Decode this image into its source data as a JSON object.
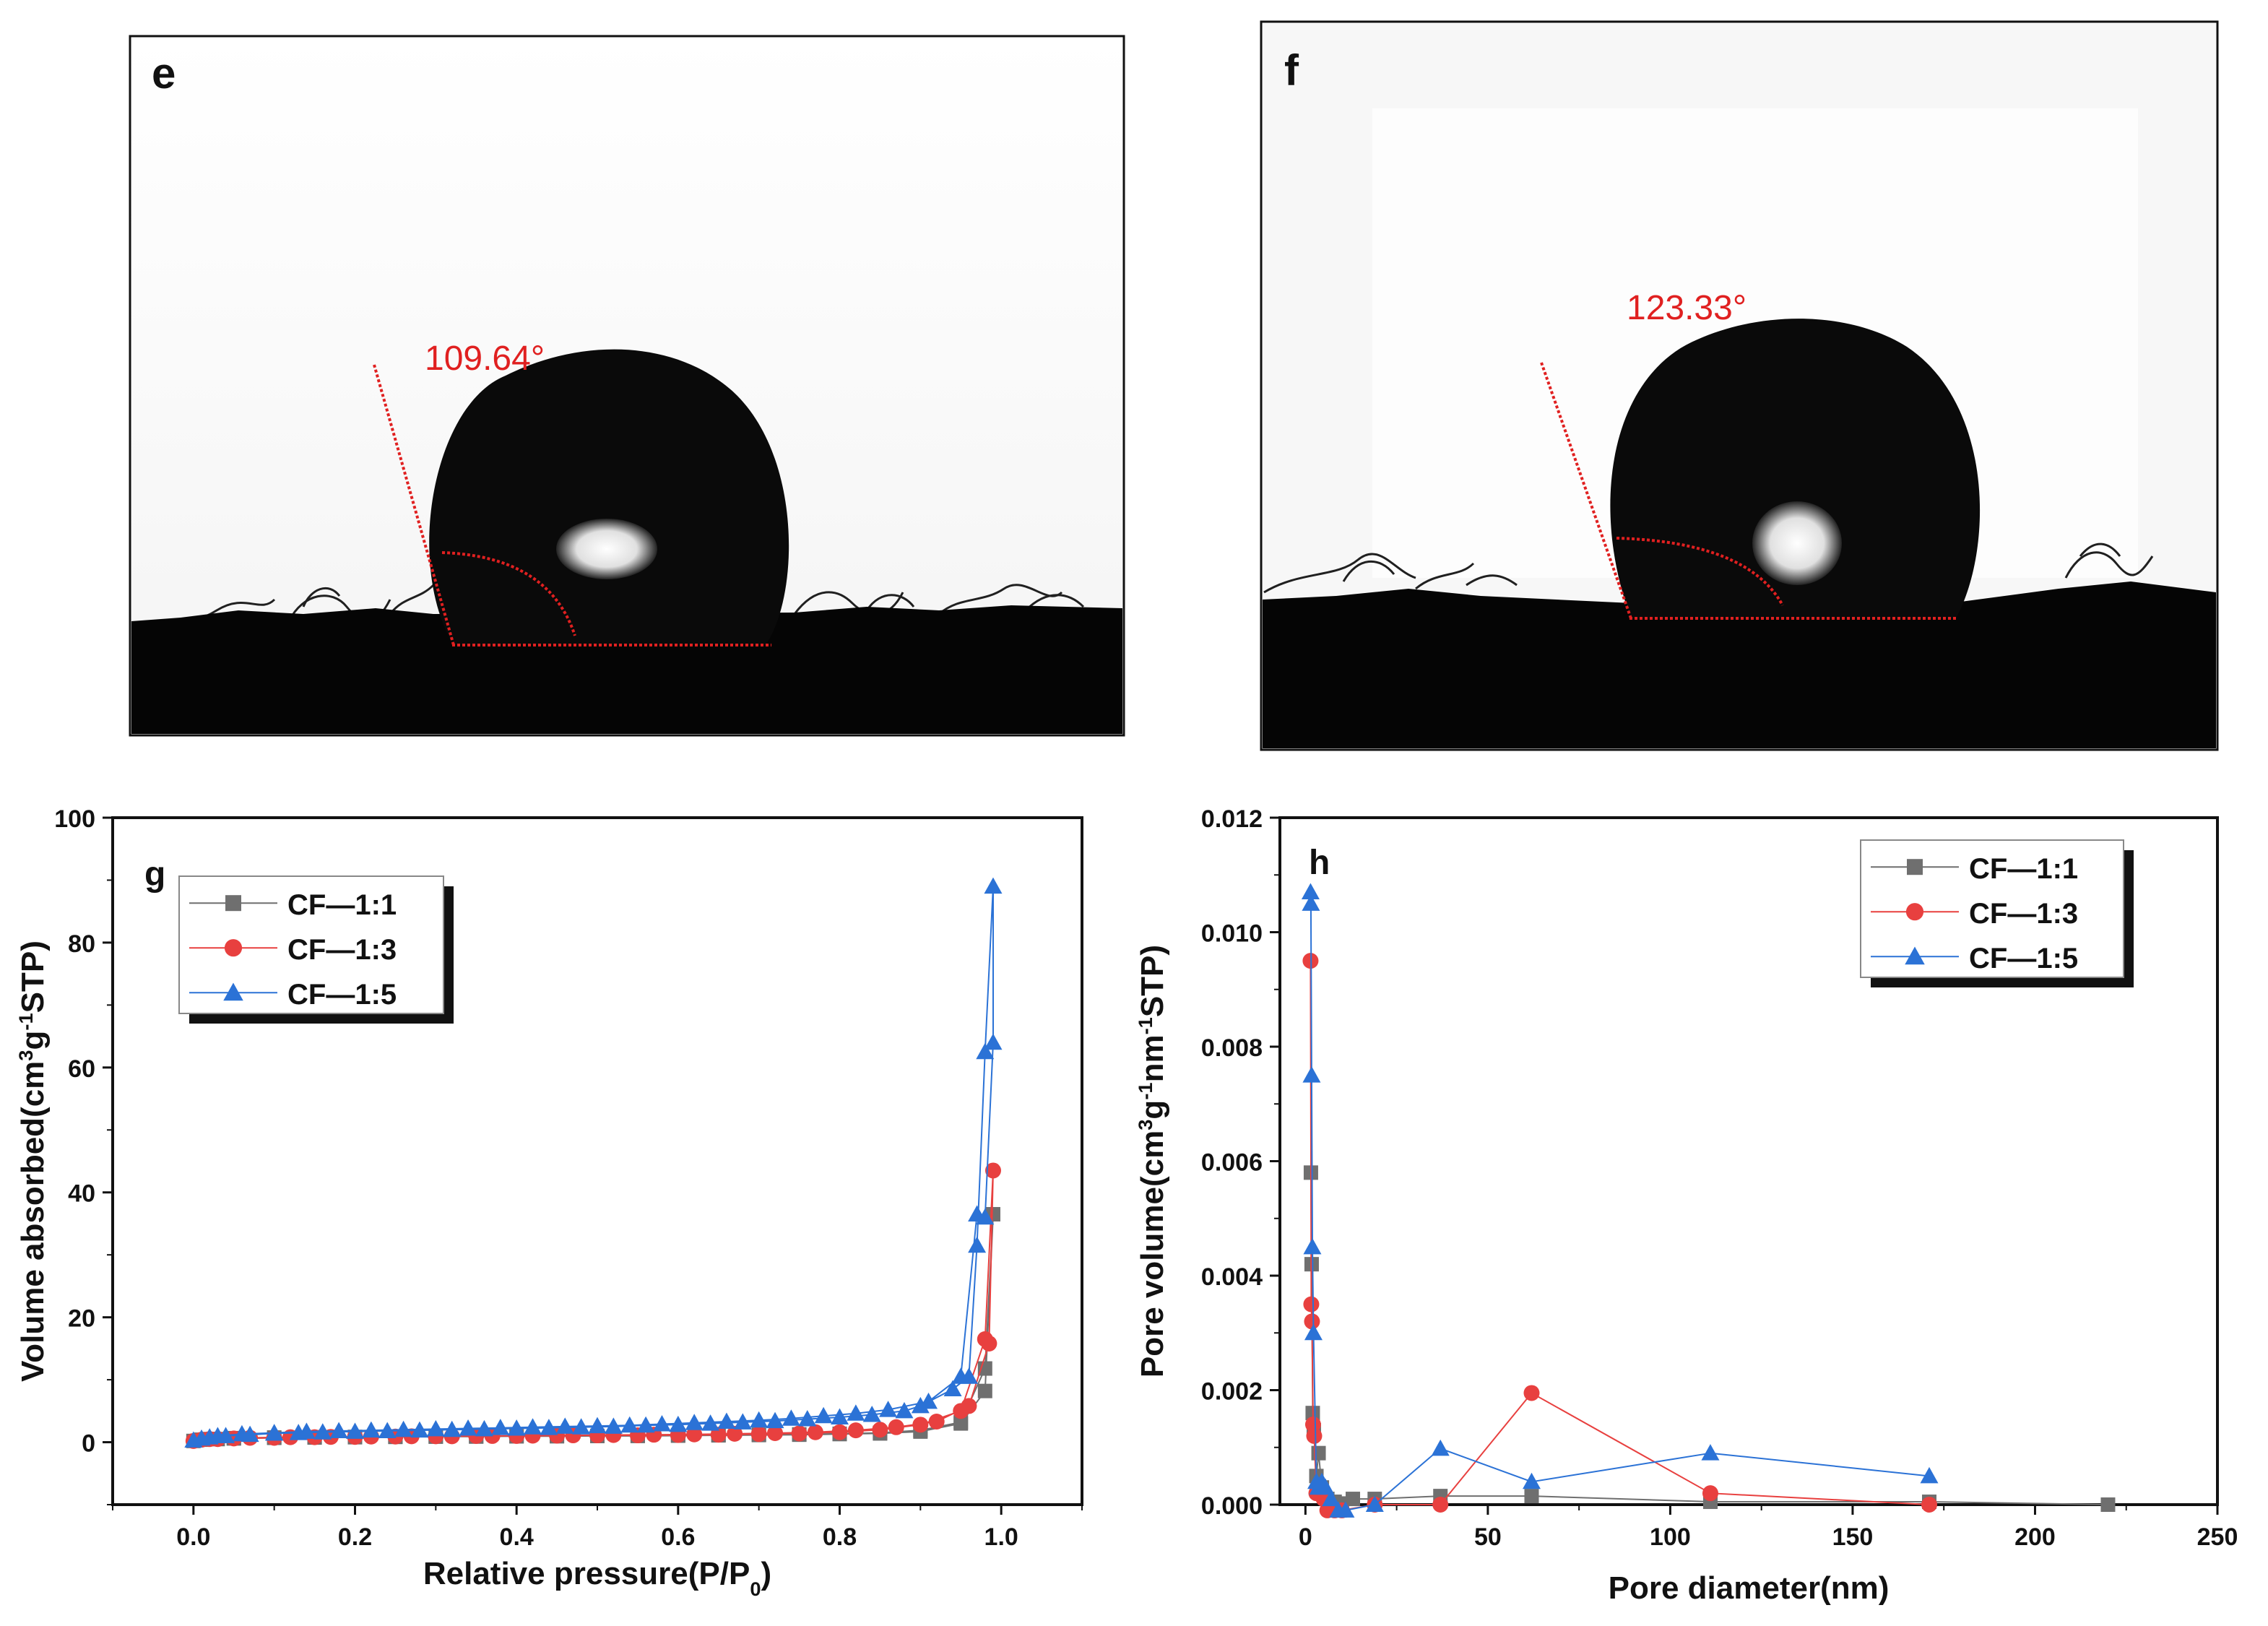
{
  "panels": {
    "e": {
      "letter": "e",
      "angle_label": "109.64°"
    },
    "f": {
      "letter": "f",
      "angle_label": "123.33°"
    }
  },
  "colors": {
    "gray": "#6f6f6f",
    "red": "#e8403f",
    "blue": "#2b72d6",
    "annotation": "#e02020"
  },
  "chart_data": [
    {
      "panel": "g",
      "type": "scatter",
      "xlabel": "Relative pressure(P/P0)",
      "ylabel": "Volume absorbed(cm3g-1STP)",
      "xlim": [
        -0.1,
        1.1
      ],
      "ylim": [
        -10,
        100
      ],
      "xticks": [
        0.0,
        0.2,
        0.4,
        0.6,
        0.8,
        1.0
      ],
      "xtick_labels": [
        "0.0",
        "0.2",
        "0.4",
        "0.6",
        "0.8",
        "1.0"
      ],
      "yticks": [
        0,
        20,
        40,
        60,
        80,
        100
      ],
      "ytick_labels": [
        "0",
        "20",
        "40",
        "60",
        "80",
        "100"
      ],
      "legend_position": "top-left",
      "series": [
        {
          "name": "CF—1:1",
          "marker": "square",
          "color": "#6f6f6f",
          "points": [
            [
              0.0,
              0.2
            ],
            [
              0.01,
              0.4
            ],
            [
              0.03,
              0.5
            ],
            [
              0.05,
              0.6
            ],
            [
              0.1,
              0.7
            ],
            [
              0.15,
              0.75
            ],
            [
              0.2,
              0.8
            ],
            [
              0.25,
              0.85
            ],
            [
              0.3,
              0.9
            ],
            [
              0.35,
              0.9
            ],
            [
              0.4,
              0.95
            ],
            [
              0.45,
              0.95
            ],
            [
              0.5,
              1.0
            ],
            [
              0.55,
              1.0
            ],
            [
              0.6,
              1.05
            ],
            [
              0.65,
              1.1
            ],
            [
              0.7,
              1.15
            ],
            [
              0.75,
              1.2
            ],
            [
              0.8,
              1.3
            ],
            [
              0.85,
              1.4
            ],
            [
              0.9,
              1.7
            ],
            [
              0.95,
              3.0
            ],
            [
              0.98,
              8.2
            ],
            [
              0.99,
              36.5
            ],
            [
              0.98,
              11.8
            ],
            [
              0.95,
              3.2
            ],
            [
              0.9,
              1.9
            ],
            [
              0.85,
              1.5
            ],
            [
              0.8,
              1.35
            ],
            [
              0.75,
              1.25
            ],
            [
              0.7,
              1.2
            ],
            [
              0.65,
              1.15
            ],
            [
              0.6,
              1.1
            ],
            [
              0.55,
              1.05
            ],
            [
              0.5,
              1.0
            ],
            [
              0.45,
              1.0
            ],
            [
              0.4,
              0.95
            ],
            [
              0.35,
              0.95
            ],
            [
              0.3,
              0.9
            ],
            [
              0.25,
              0.9
            ],
            [
              0.2,
              0.85
            ],
            [
              0.15,
              0.8
            ],
            [
              0.1,
              0.75
            ],
            [
              0.05,
              0.65
            ],
            [
              0.02,
              0.5
            ]
          ]
        },
        {
          "name": "CF—1:3",
          "marker": "circle",
          "color": "#e8403f",
          "points": [
            [
              0.0,
              0.2
            ],
            [
              0.01,
              0.4
            ],
            [
              0.03,
              0.5
            ],
            [
              0.05,
              0.6
            ],
            [
              0.1,
              0.7
            ],
            [
              0.15,
              0.8
            ],
            [
              0.2,
              0.85
            ],
            [
              0.25,
              0.9
            ],
            [
              0.3,
              0.95
            ],
            [
              0.35,
              1.0
            ],
            [
              0.4,
              1.0
            ],
            [
              0.45,
              1.05
            ],
            [
              0.5,
              1.1
            ],
            [
              0.55,
              1.1
            ],
            [
              0.6,
              1.15
            ],
            [
              0.65,
              1.2
            ],
            [
              0.7,
              1.3
            ],
            [
              0.75,
              1.4
            ],
            [
              0.8,
              1.6
            ],
            [
              0.85,
              2.0
            ],
            [
              0.9,
              2.8
            ],
            [
              0.95,
              5.0
            ],
            [
              0.98,
              16.5
            ],
            [
              0.99,
              43.5
            ],
            [
              0.985,
              15.8
            ],
            [
              0.96,
              5.8
            ],
            [
              0.92,
              3.3
            ],
            [
              0.87,
              2.4
            ],
            [
              0.82,
              1.9
            ],
            [
              0.77,
              1.6
            ],
            [
              0.72,
              1.45
            ],
            [
              0.67,
              1.35
            ],
            [
              0.62,
              1.25
            ],
            [
              0.57,
              1.2
            ],
            [
              0.52,
              1.15
            ],
            [
              0.47,
              1.1
            ],
            [
              0.42,
              1.05
            ],
            [
              0.37,
              1.0
            ],
            [
              0.32,
              0.95
            ],
            [
              0.27,
              0.95
            ],
            [
              0.22,
              0.9
            ],
            [
              0.17,
              0.85
            ],
            [
              0.12,
              0.8
            ],
            [
              0.07,
              0.7
            ],
            [
              0.02,
              0.5
            ]
          ]
        },
        {
          "name": "CF—1:5",
          "marker": "triangle",
          "color": "#2b72d6",
          "points": [
            [
              0.0,
              0.3
            ],
            [
              0.01,
              0.6
            ],
            [
              0.02,
              0.8
            ],
            [
              0.04,
              1.0
            ],
            [
              0.07,
              1.2
            ],
            [
              0.1,
              1.4
            ],
            [
              0.13,
              1.5
            ],
            [
              0.16,
              1.6
            ],
            [
              0.2,
              1.7
            ],
            [
              0.24,
              1.8
            ],
            [
              0.28,
              1.9
            ],
            [
              0.32,
              2.0
            ],
            [
              0.36,
              2.1
            ],
            [
              0.4,
              2.2
            ],
            [
              0.44,
              2.3
            ],
            [
              0.48,
              2.4
            ],
            [
              0.52,
              2.5
            ],
            [
              0.56,
              2.7
            ],
            [
              0.6,
              2.8
            ],
            [
              0.64,
              3.0
            ],
            [
              0.68,
              3.2
            ],
            [
              0.72,
              3.4
            ],
            [
              0.76,
              3.7
            ],
            [
              0.8,
              4.0
            ],
            [
              0.84,
              4.4
            ],
            [
              0.88,
              5.0
            ],
            [
              0.9,
              5.8
            ],
            [
              0.94,
              8.5
            ],
            [
              0.96,
              10.5
            ],
            [
              0.97,
              31.5
            ],
            [
              0.98,
              62.5
            ],
            [
              0.99,
              89.0
            ],
            [
              0.99,
              64.0
            ],
            [
              0.98,
              36.0
            ],
            [
              0.97,
              36.5
            ],
            [
              0.95,
              10.5
            ],
            [
              0.91,
              6.5
            ],
            [
              0.86,
              5.2
            ],
            [
              0.82,
              4.6
            ],
            [
              0.78,
              4.2
            ],
            [
              0.74,
              3.8
            ],
            [
              0.7,
              3.5
            ],
            [
              0.66,
              3.3
            ],
            [
              0.62,
              3.1
            ],
            [
              0.58,
              2.9
            ],
            [
              0.54,
              2.7
            ],
            [
              0.5,
              2.6
            ],
            [
              0.46,
              2.5
            ],
            [
              0.42,
              2.4
            ],
            [
              0.38,
              2.3
            ],
            [
              0.34,
              2.2
            ],
            [
              0.3,
              2.1
            ],
            [
              0.26,
              2.0
            ],
            [
              0.22,
              1.9
            ],
            [
              0.18,
              1.8
            ],
            [
              0.14,
              1.7
            ],
            [
              0.1,
              1.5
            ],
            [
              0.06,
              1.3
            ],
            [
              0.03,
              1.0
            ]
          ]
        }
      ]
    },
    {
      "panel": "h",
      "type": "line",
      "xlabel": "Pore diameter(nm)",
      "ylabel": "Pore volume(cm3g-1nm-1STP)",
      "xlim": [
        -7,
        250
      ],
      "ylim": [
        0,
        0.012
      ],
      "xticks": [
        0,
        50,
        100,
        150,
        200,
        250
      ],
      "xtick_labels": [
        "0",
        "50",
        "100",
        "150",
        "200",
        "250"
      ],
      "yticks": [
        0,
        0.002,
        0.004,
        0.006,
        0.008,
        0.01,
        0.012
      ],
      "ytick_labels": [
        "0.000",
        "0.002",
        "0.004",
        "0.006",
        "0.008",
        "0.010",
        "0.012"
      ],
      "legend_position": "top-right",
      "series": [
        {
          "name": "CF—1:1",
          "marker": "square",
          "color": "#6f6f6f",
          "points": [
            [
              1.5,
              0.0058
            ],
            [
              1.7,
              0.0042
            ],
            [
              2.0,
              0.0016
            ],
            [
              2.3,
              0.0013
            ],
            [
              3.0,
              0.0005
            ],
            [
              3.6,
              0.0009
            ],
            [
              4.5,
              0.0003
            ],
            [
              6.0,
              0.0001
            ],
            [
              8.0,
              5e-05
            ],
            [
              10.0,
              2e-05
            ],
            [
              13.0,
              0.0001
            ],
            [
              19.0,
              0.0001
            ],
            [
              37.0,
              0.00015
            ],
            [
              62.0,
              0.00015
            ],
            [
              111.0,
              5e-05
            ],
            [
              171.0,
              5e-05
            ],
            [
              220.0,
              0.0
            ]
          ]
        },
        {
          "name": "CF—1:3",
          "marker": "circle",
          "color": "#e8403f",
          "points": [
            [
              1.4,
              0.0095
            ],
            [
              1.6,
              0.0035
            ],
            [
              1.8,
              0.0032
            ],
            [
              2.1,
              0.0014
            ],
            [
              2.4,
              0.0012
            ],
            [
              3.0,
              0.0002
            ],
            [
              4.0,
              0.0003
            ],
            [
              5.0,
              0.0001
            ],
            [
              6.0,
              -0.0001
            ],
            [
              8.0,
              -0.0001
            ],
            [
              10.0,
              -0.0001
            ],
            [
              19.0,
              0.0
            ],
            [
              37.0,
              0.0
            ],
            [
              62.0,
              0.00195
            ],
            [
              111.0,
              0.0002
            ],
            [
              171.0,
              0.0
            ]
          ]
        },
        {
          "name": "CF—1:5",
          "marker": "triangle",
          "color": "#2b72d6",
          "points": [
            [
              1.4,
              0.0107
            ],
            [
              1.5,
              0.0105
            ],
            [
              1.7,
              0.0075
            ],
            [
              1.9,
              0.0045
            ],
            [
              2.2,
              0.003
            ],
            [
              3.0,
              0.0004
            ],
            [
              3.5,
              0.0003
            ],
            [
              4.5,
              0.0004
            ],
            [
              5.5,
              0.0003
            ],
            [
              7.0,
              0.0001
            ],
            [
              9.0,
              -0.0001
            ],
            [
              11.0,
              -0.0001
            ],
            [
              19.0,
              0.0
            ],
            [
              37.0,
              0.00098
            ],
            [
              62.0,
              0.0004
            ],
            [
              111.0,
              0.0009
            ],
            [
              171.0,
              0.0005
            ]
          ]
        }
      ]
    }
  ]
}
